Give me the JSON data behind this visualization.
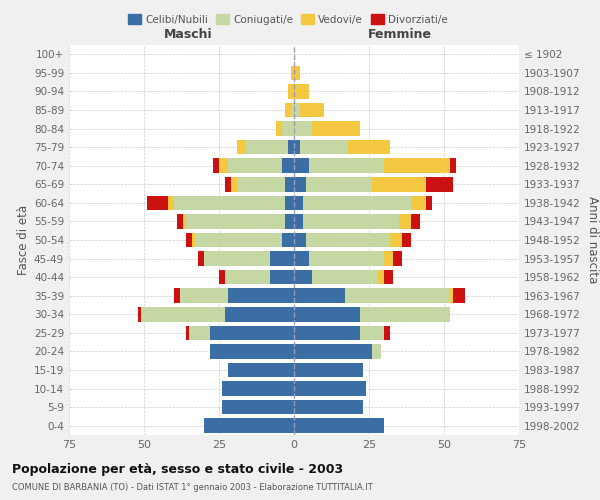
{
  "age_groups": [
    "0-4",
    "5-9",
    "10-14",
    "15-19",
    "20-24",
    "25-29",
    "30-34",
    "35-39",
    "40-44",
    "45-49",
    "50-54",
    "55-59",
    "60-64",
    "65-69",
    "70-74",
    "75-79",
    "80-84",
    "85-89",
    "90-94",
    "95-99",
    "100+"
  ],
  "birth_years": [
    "1998-2002",
    "1993-1997",
    "1988-1992",
    "1983-1987",
    "1978-1982",
    "1973-1977",
    "1968-1972",
    "1963-1967",
    "1958-1962",
    "1953-1957",
    "1948-1952",
    "1943-1947",
    "1938-1942",
    "1933-1937",
    "1928-1932",
    "1923-1927",
    "1918-1922",
    "1913-1917",
    "1908-1912",
    "1903-1907",
    "≤ 1902"
  ],
  "colors": {
    "celibe": "#3a6ea5",
    "coniugato": "#c5d8a4",
    "vedovo": "#f5c842",
    "divorziato": "#cc1111"
  },
  "male": {
    "celibe": [
      30,
      24,
      24,
      22,
      28,
      28,
      23,
      22,
      8,
      8,
      4,
      3,
      3,
      3,
      4,
      2,
      0,
      0,
      0,
      0,
      0
    ],
    "coniugato": [
      0,
      0,
      0,
      0,
      0,
      7,
      28,
      16,
      15,
      22,
      29,
      33,
      37,
      16,
      18,
      14,
      4,
      1,
      0,
      0,
      0
    ],
    "vedovo": [
      0,
      0,
      0,
      0,
      0,
      0,
      0,
      0,
      0,
      0,
      1,
      1,
      2,
      2,
      3,
      3,
      2,
      2,
      2,
      1,
      0
    ],
    "divorziato": [
      0,
      0,
      0,
      0,
      0,
      1,
      1,
      2,
      2,
      2,
      2,
      2,
      7,
      2,
      2,
      0,
      0,
      0,
      0,
      0,
      0
    ]
  },
  "female": {
    "nubile": [
      30,
      23,
      24,
      23,
      26,
      22,
      22,
      17,
      6,
      5,
      4,
      3,
      3,
      4,
      5,
      2,
      0,
      0,
      0,
      0,
      0
    ],
    "coniugata": [
      0,
      0,
      0,
      0,
      3,
      8,
      30,
      35,
      22,
      25,
      28,
      32,
      36,
      22,
      25,
      16,
      6,
      2,
      0,
      0,
      0
    ],
    "vedova": [
      0,
      0,
      0,
      0,
      0,
      0,
      0,
      1,
      2,
      3,
      4,
      4,
      5,
      18,
      22,
      14,
      16,
      8,
      5,
      2,
      0
    ],
    "divorziata": [
      0,
      0,
      0,
      0,
      0,
      2,
      0,
      4,
      3,
      3,
      3,
      3,
      2,
      9,
      2,
      0,
      0,
      0,
      0,
      0,
      0
    ]
  },
  "xlim": 75,
  "title": "Popolazione per età, sesso e stato civile - 2003",
  "subtitle": "COMUNE DI BARBANIA (TO) - Dati ISTAT 1° gennaio 2003 - Elaborazione TUTTITALIA.IT",
  "ylabel_left": "Fasce di età",
  "ylabel_right": "Anni di nascita",
  "xlabel_left": "Maschi",
  "xlabel_right": "Femmine",
  "legend_labels": [
    "Celibi/Nubili",
    "Coniugati/e",
    "Vedovi/e",
    "Divorziati/e"
  ],
  "background_color": "#f0f0f0",
  "plot_bg_color": "#ffffff"
}
